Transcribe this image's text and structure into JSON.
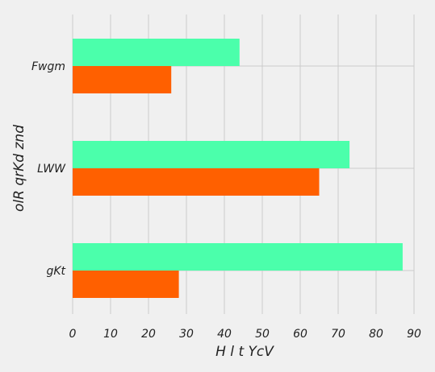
{
  "chart_data": {
    "type": "bar",
    "orientation": "horizontal",
    "categories": [
      "gKt",
      "LWW",
      "Fwgm"
    ],
    "series": [
      {
        "values": [
          87,
          73,
          44
        ],
        "color": "#4bffab"
      },
      {
        "values": [
          28,
          65,
          26
        ],
        "color": "#ff6000"
      }
    ],
    "xlabel": "H l t YcV",
    "ylabel": "olR qrKd znd",
    "xlim": [
      0,
      90
    ],
    "xticks": [
      0,
      10,
      20,
      30,
      40,
      50,
      60,
      70,
      80,
      90
    ],
    "grid": true,
    "legend": false
  }
}
